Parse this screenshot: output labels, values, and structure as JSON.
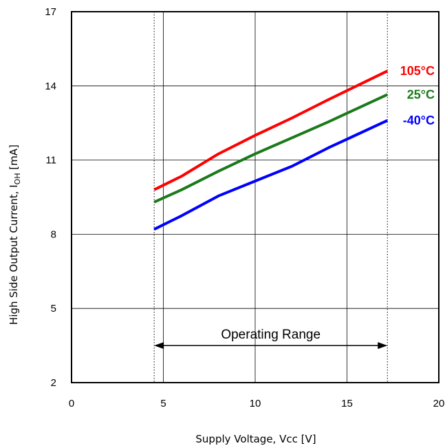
{
  "chart_data": {
    "type": "line",
    "title": "",
    "xlabel": "Supply Voltage, Vcc [V]",
    "ylabel": {
      "main": "High Side Output Current, I",
      "sub": "OH",
      "unit": " [mA]"
    },
    "xlim": [
      0,
      20
    ],
    "ylim": [
      2,
      17
    ],
    "xticks": [
      0,
      5,
      10,
      15,
      20
    ],
    "yticks": [
      2,
      5,
      8,
      11,
      14,
      17
    ],
    "grid": true,
    "series": [
      {
        "name": "105°C",
        "color": "#ff0000",
        "x": [
          4.5,
          6,
          8,
          10,
          12,
          14,
          17.2
        ],
        "y": [
          9.8,
          10.35,
          11.25,
          12.0,
          12.7,
          13.45,
          14.6
        ]
      },
      {
        "name": "25°C",
        "color": "#1a7a1a",
        "x": [
          4.5,
          6,
          8,
          10,
          12,
          14,
          17.2
        ],
        "y": [
          9.3,
          9.8,
          10.55,
          11.25,
          11.9,
          12.55,
          13.65
        ]
      },
      {
        "name": "-40°C",
        "color": "#0000ff",
        "x": [
          4.5,
          6,
          8,
          10,
          12,
          14,
          17.2
        ],
        "y": [
          8.2,
          8.75,
          9.55,
          10.15,
          10.75,
          11.5,
          12.6
        ]
      }
    ],
    "annotations": {
      "operating_range": {
        "label": "Operating Range",
        "x_start": 4.5,
        "x_end": 17.2,
        "y": 3.5
      }
    }
  }
}
